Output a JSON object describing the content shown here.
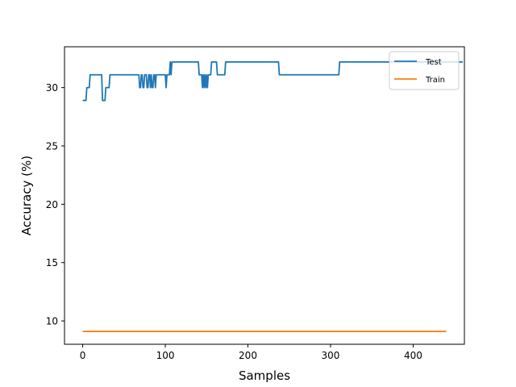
{
  "chart_data": {
    "type": "line",
    "xlabel": "Samples",
    "ylabel": "Accuracy (%)",
    "xlim": [
      -22,
      462
    ],
    "ylim": [
      8.0,
      33.5
    ],
    "xticks": [
      0,
      100,
      200,
      300,
      400
    ],
    "yticks": [
      10,
      15,
      20,
      25,
      30
    ],
    "grid": false,
    "legend": {
      "position": "top-right"
    },
    "series": [
      {
        "name": "Test",
        "color": "#1f77b4",
        "points": [
          [
            0,
            28.9
          ],
          [
            4,
            28.9
          ],
          [
            5,
            30.0
          ],
          [
            8,
            30.0
          ],
          [
            9,
            31.1
          ],
          [
            23,
            31.1
          ],
          [
            24,
            28.9
          ],
          [
            27,
            28.9
          ],
          [
            28,
            30.0
          ],
          [
            32,
            30.0
          ],
          [
            33,
            31.1
          ],
          [
            68,
            31.1
          ],
          [
            69,
            30.0
          ],
          [
            70,
            30.0
          ],
          [
            71,
            31.1
          ],
          [
            72,
            31.1
          ],
          [
            73,
            30.0
          ],
          [
            74,
            30.0
          ],
          [
            75,
            31.1
          ],
          [
            77,
            31.1
          ],
          [
            78,
            30.0
          ],
          [
            79,
            30.0
          ],
          [
            80,
            31.1
          ],
          [
            81,
            31.1
          ],
          [
            82,
            30.0
          ],
          [
            83,
            31.1
          ],
          [
            84,
            30.0
          ],
          [
            85,
            30.0
          ],
          [
            86,
            31.1
          ],
          [
            87,
            31.1
          ],
          [
            88,
            30.0
          ],
          [
            89,
            31.1
          ],
          [
            100,
            31.1
          ],
          [
            101,
            30.0
          ],
          [
            102,
            31.1
          ],
          [
            105,
            31.1
          ],
          [
            106,
            32.2
          ],
          [
            107,
            31.1
          ],
          [
            108,
            32.2
          ],
          [
            140,
            32.2
          ],
          [
            141,
            31.1
          ],
          [
            144,
            31.1
          ],
          [
            145,
            30.0
          ],
          [
            146,
            31.1
          ],
          [
            147,
            30.0
          ],
          [
            148,
            31.1
          ],
          [
            149,
            30.0
          ],
          [
            150,
            31.1
          ],
          [
            151,
            30.0
          ],
          [
            152,
            31.1
          ],
          [
            155,
            31.1
          ],
          [
            156,
            32.2
          ],
          [
            162,
            32.2
          ],
          [
            163,
            31.1
          ],
          [
            172,
            31.1
          ],
          [
            173,
            32.2
          ],
          [
            237,
            32.2
          ],
          [
            238,
            31.1
          ],
          [
            310,
            31.1
          ],
          [
            311,
            32.2
          ],
          [
            460,
            32.2
          ]
        ]
      },
      {
        "name": "Train",
        "color": "#ff7f0e",
        "points": [
          [
            0,
            9.1
          ],
          [
            440,
            9.1
          ]
        ]
      }
    ]
  }
}
